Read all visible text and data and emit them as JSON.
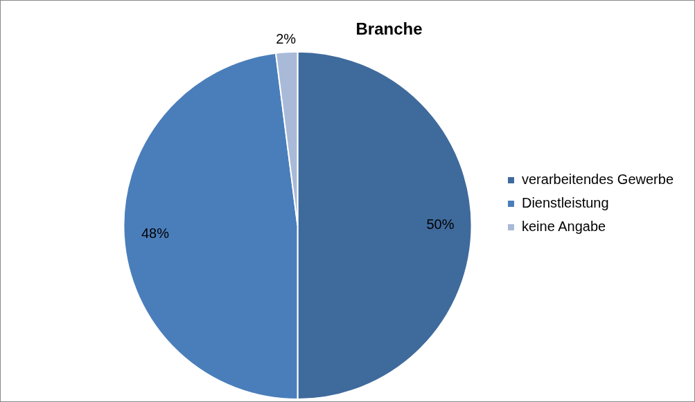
{
  "chart_data": {
    "type": "pie",
    "title": "Branche",
    "categories": [
      "verarbeitendes Gewerbe",
      "Dienstleistung",
      "keine Angabe"
    ],
    "values": [
      50,
      48,
      2
    ],
    "colors": [
      "#3f6a9c",
      "#4a7ebb",
      "#a9bad8"
    ],
    "value_labels": [
      "50%",
      "48%",
      "2%"
    ],
    "legend": "right"
  }
}
